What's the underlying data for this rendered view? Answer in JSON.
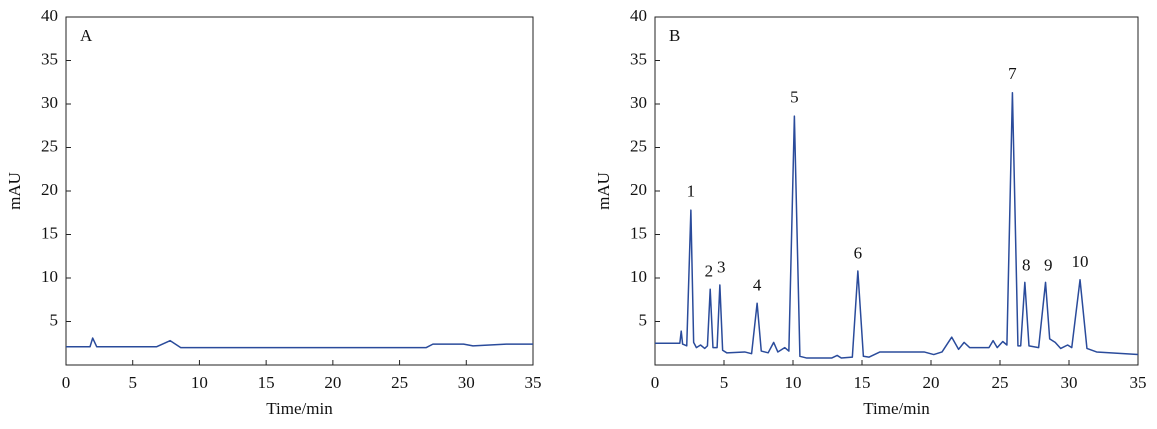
{
  "chart_data": [
    {
      "type": "line",
      "panel_label": "A",
      "x_label": "Time/min",
      "y_label": "mAU",
      "color": "#2a4b9b",
      "xlim": [
        0,
        35
      ],
      "xticks": [
        0,
        5,
        10,
        15,
        20,
        25,
        30,
        35
      ],
      "ylim": [
        0,
        40
      ],
      "yticks": [
        5,
        10,
        15,
        20,
        25,
        30,
        35,
        40
      ],
      "x": [
        0,
        1.8,
        2.0,
        2.3,
        6.8,
        7.8,
        8.6,
        27,
        27.5,
        29.8,
        30.5,
        33,
        35
      ],
      "values": [
        2.1,
        2.1,
        3.1,
        2.1,
        2.1,
        2.8,
        2.0,
        2.0,
        2.4,
        2.4,
        2.2,
        2.4,
        2.4
      ],
      "annotations": []
    },
    {
      "type": "line",
      "panel_label": "B",
      "x_label": "Time/min",
      "y_label": "mAU",
      "color": "#2a4b9b",
      "xlim": [
        0,
        35
      ],
      "xticks": [
        0,
        5,
        10,
        15,
        20,
        25,
        30,
        35
      ],
      "ylim": [
        0,
        40
      ],
      "yticks": [
        5,
        10,
        15,
        20,
        25,
        30,
        35,
        40
      ],
      "x": [
        0,
        1.8,
        1.9,
        2.0,
        2.3,
        2.6,
        2.8,
        3.0,
        3.3,
        3.6,
        3.8,
        4.0,
        4.2,
        4.5,
        4.7,
        4.9,
        5.2,
        6.5,
        7.0,
        7.4,
        7.7,
        8.2,
        8.6,
        8.9,
        9.4,
        9.7,
        10.1,
        10.5,
        11,
        12.8,
        13.2,
        13.5,
        14.3,
        14.7,
        15.1,
        15.5,
        16.3,
        19.5,
        20.2,
        20.8,
        21.5,
        22,
        22.4,
        22.8,
        24.2,
        24.5,
        24.8,
        25.2,
        25.5,
        25.9,
        26.3,
        26.5,
        26.8,
        27.1,
        27.8,
        28.3,
        28.6,
        29,
        29.4,
        29.9,
        30.2,
        30.8,
        31.3,
        32,
        35
      ],
      "values": [
        2.5,
        2.5,
        3.9,
        2.4,
        2.2,
        17.8,
        2.6,
        2.0,
        2.3,
        1.9,
        2.2,
        8.7,
        2.0,
        2.0,
        9.2,
        1.7,
        1.4,
        1.5,
        1.3,
        7.1,
        1.6,
        1.4,
        2.6,
        1.5,
        2.0,
        1.6,
        28.6,
        1.0,
        0.8,
        0.8,
        1.1,
        0.8,
        0.9,
        10.8,
        1.0,
        0.9,
        1.5,
        1.5,
        1.2,
        1.5,
        3.2,
        1.8,
        2.6,
        2.0,
        2.0,
        2.8,
        2.0,
        2.7,
        2.3,
        31.3,
        2.2,
        2.2,
        9.5,
        2.2,
        2.0,
        9.5,
        3.0,
        2.6,
        1.9,
        2.3,
        2.0,
        9.8,
        1.9,
        1.5,
        1.2
      ],
      "annotations": [
        {
          "text": "1",
          "x": 2.6,
          "y": 19.8
        },
        {
          "text": "2",
          "x": 3.9,
          "y": 10.6
        },
        {
          "text": "3",
          "x": 4.8,
          "y": 11.1
        },
        {
          "text": "4",
          "x": 7.4,
          "y": 9.0
        },
        {
          "text": "5",
          "x": 10.1,
          "y": 30.6
        },
        {
          "text": "6",
          "x": 14.7,
          "y": 12.7
        },
        {
          "text": "7",
          "x": 25.9,
          "y": 33.3
        },
        {
          "text": "8",
          "x": 26.9,
          "y": 11.3
        },
        {
          "text": "9",
          "x": 28.5,
          "y": 11.3
        },
        {
          "text": "10",
          "x": 30.8,
          "y": 11.7
        }
      ]
    }
  ]
}
